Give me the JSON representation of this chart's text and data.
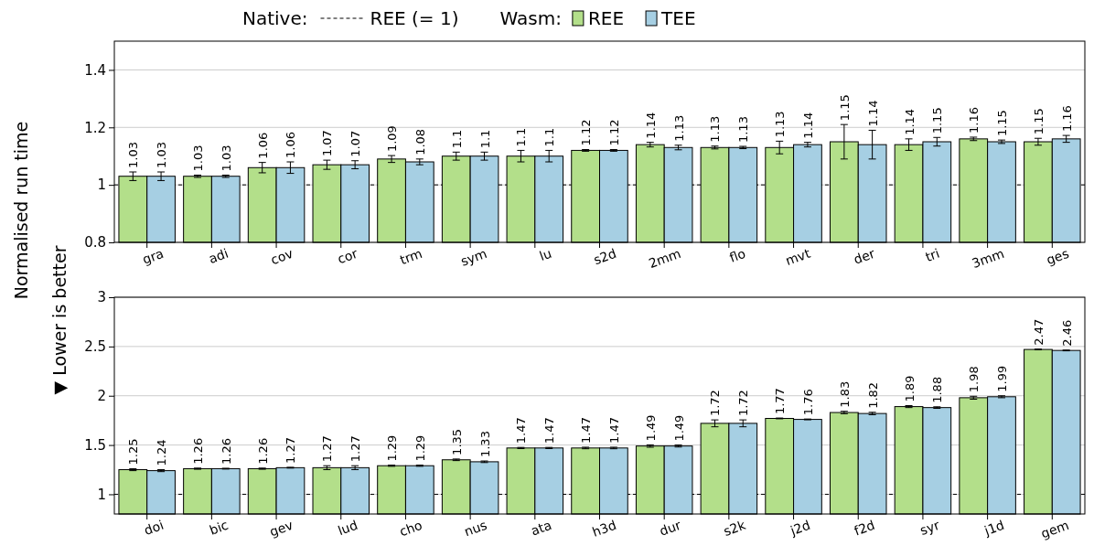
{
  "chart_data": [
    {
      "type": "bar",
      "ylabel": "Normalised run time",
      "legend": "top",
      "legend_title": "Wasm:",
      "annotations": [
        "Native:"
      ],
      "categories": [
        "gra",
        "adi",
        "cov",
        "cor",
        "trm",
        "sym",
        "lu",
        "s2d",
        "2mm",
        "flo",
        "mvt",
        "der",
        "tri",
        "3mm",
        "ges"
      ],
      "series": [
        {
          "name": "REE",
          "color": "#b3df8a",
          "values": [
            1.03,
            1.03,
            1.06,
            1.07,
            1.09,
            1.1,
            1.1,
            1.12,
            1.14,
            1.13,
            1.13,
            1.15,
            1.14,
            1.16,
            1.15
          ],
          "errors": [
            0.015,
            0.004,
            0.018,
            0.016,
            0.012,
            0.014,
            0.02,
            0.003,
            0.008,
            0.005,
            0.022,
            0.06,
            0.02,
            0.006,
            0.012
          ]
        },
        {
          "name": "TEE",
          "color": "#a6cfe3",
          "values": [
            1.03,
            1.03,
            1.06,
            1.07,
            1.08,
            1.1,
            1.1,
            1.12,
            1.13,
            1.13,
            1.14,
            1.14,
            1.15,
            1.15,
            1.16
          ],
          "errors": [
            0.015,
            0.004,
            0.02,
            0.014,
            0.01,
            0.014,
            0.02,
            0.003,
            0.008,
            0.004,
            0.008,
            0.05,
            0.015,
            0.006,
            0.012
          ]
        }
      ],
      "ylim": [
        0.8,
        1.5
      ],
      "yticks": [
        0.8,
        1,
        1.2,
        1.4
      ],
      "grid": "y",
      "data_labels": true,
      "ref_lines": [
        {
          "axis": "y",
          "value": 1,
          "label": "REE (= 1)",
          "line_style": "dashed",
          "color": "#000000"
        }
      ]
    },
    {
      "type": "bar",
      "ylabel": "▼ Lower is better",
      "legend": false,
      "categories": [
        "doi",
        "bic",
        "gev",
        "lud",
        "cho",
        "nus",
        "ata",
        "h3d",
        "dur",
        "s2k",
        "j2d",
        "f2d",
        "syr",
        "j1d",
        "gem"
      ],
      "series": [
        {
          "color": "#b3df8a",
          "values": [
            1.25,
            1.26,
            1.26,
            1.27,
            1.29,
            1.35,
            1.47,
            1.47,
            1.49,
            1.72,
            1.77,
            1.83,
            1.89,
            1.98,
            2.47
          ],
          "errors": [
            0.01,
            0.006,
            0.006,
            0.02,
            0.006,
            0.008,
            0.006,
            0.008,
            0.012,
            0.035,
            0.004,
            0.012,
            0.01,
            0.015,
            0.004
          ]
        },
        {
          "color": "#a6cfe3",
          "values": [
            1.24,
            1.26,
            1.27,
            1.27,
            1.29,
            1.33,
            1.47,
            1.47,
            1.49,
            1.72,
            1.76,
            1.82,
            1.88,
            1.99,
            2.46
          ],
          "errors": [
            0.01,
            0.004,
            0.004,
            0.02,
            0.006,
            0.008,
            0.006,
            0.008,
            0.01,
            0.035,
            0.004,
            0.012,
            0.008,
            0.01,
            0.004
          ]
        }
      ],
      "ylim": [
        0.8,
        3
      ],
      "yticks": [
        1,
        1.5,
        2,
        2.5,
        3
      ],
      "grid": "y",
      "data_labels": true,
      "ref_lines": [
        {
          "axis": "y",
          "value": 1,
          "line_style": "dashed",
          "color": "#000000"
        }
      ]
    }
  ]
}
